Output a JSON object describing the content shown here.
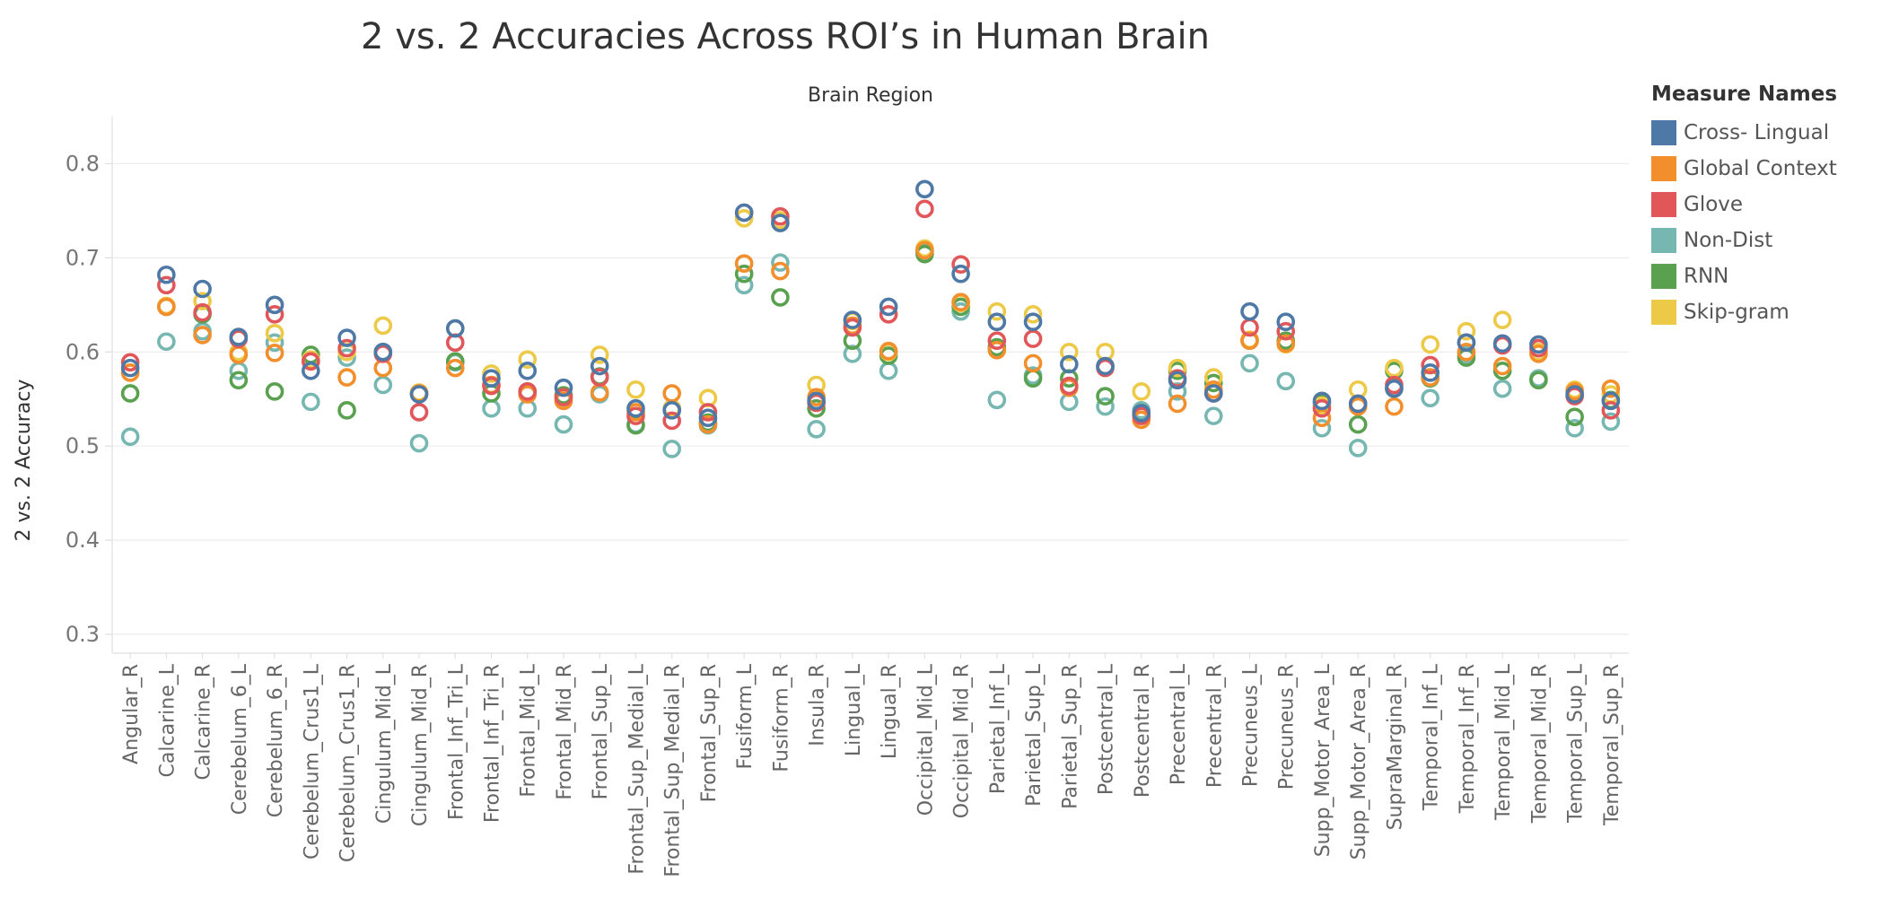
{
  "chart_data": {
    "type": "scatter",
    "title": "2 vs. 2 Accuracies Across ROI’s in Human Brain",
    "column_header": "Brain Region",
    "ylabel": "2 vs. 2 Accuracy",
    "ylim": [
      0.28,
      0.85
    ],
    "yticks": [
      "0.3",
      "0.4",
      "0.5",
      "0.6",
      "0.7",
      "0.8"
    ],
    "grid": true,
    "legend_title": "Measure Names",
    "legend_position": "right",
    "categories": [
      "Angular_R",
      "Calcarine_L",
      "Calcarine_R",
      "Cerebelum_6_L",
      "Cerebelum_6_R",
      "Cerebelum_Crus1_L",
      "Cerebelum_Crus1_R",
      "Cingulum_Mid_L",
      "Cingulum_Mid_R",
      "Frontal_Inf_Tri_L",
      "Frontal_Inf_Tri_R",
      "Frontal_Mid_L",
      "Frontal_Mid_R",
      "Frontal_Sup_L",
      "Frontal_Sup_Medial_L",
      "Frontal_Sup_Medial_R",
      "Frontal_Sup_R",
      "Fusiform_L",
      "Fusiform_R",
      "Insula_R",
      "Lingual_L",
      "Lingual_R",
      "Occipital_Mid_L",
      "Occipital_Mid_R",
      "Parietal_Inf_L",
      "Parietal_Sup_L",
      "Parietal_Sup_R",
      "Postcentral_L",
      "Postcentral_R",
      "Precentral_L",
      "Precentral_R",
      "Precuneus_L",
      "Precuneus_R",
      "Supp_Motor_Area_L",
      "Supp_Motor_Area_R",
      "SupraMarginal_R",
      "Temporal_Inf_L",
      "Temporal_Inf_R",
      "Temporal_Mid_L",
      "Temporal_Mid_R",
      "Temporal_Sup_L",
      "Temporal_Sup_R"
    ],
    "series": [
      {
        "name": "Cross- Lingual",
        "color": "#4e79a7",
        "values": [
          0.583,
          0.682,
          0.667,
          0.616,
          0.65,
          0.58,
          0.615,
          0.6,
          0.555,
          0.625,
          0.572,
          0.58,
          0.562,
          0.585,
          0.54,
          0.538,
          0.53,
          0.748,
          0.737,
          0.548,
          0.634,
          0.648,
          0.773,
          0.683,
          0.632,
          0.632,
          0.587,
          0.585,
          0.535,
          0.57,
          0.556,
          0.643,
          0.632,
          0.548,
          0.545,
          0.561,
          0.578,
          0.61,
          0.609,
          0.608,
          0.555,
          0.548
        ]
      },
      {
        "name": "Global  Context",
        "color": "#f28e2b",
        "values": [
          0.578,
          0.648,
          0.618,
          0.597,
          0.599,
          0.59,
          0.573,
          0.583,
          0.556,
          0.583,
          0.565,
          0.555,
          0.548,
          0.557,
          0.536,
          0.556,
          0.523,
          0.694,
          0.686,
          0.552,
          0.628,
          0.601,
          0.708,
          0.653,
          0.602,
          0.588,
          0.562,
          0.585,
          0.528,
          0.545,
          0.56,
          0.612,
          0.609,
          0.53,
          0.542,
          0.542,
          0.573,
          0.6,
          0.585,
          0.598,
          0.558,
          0.561
        ]
      },
      {
        "name": "Glove",
        "color": "#e15759",
        "values": [
          0.589,
          0.671,
          0.642,
          0.614,
          0.64,
          0.59,
          0.604,
          0.598,
          0.536,
          0.61,
          0.564,
          0.558,
          0.552,
          0.573,
          0.532,
          0.527,
          0.536,
          0.748,
          0.744,
          0.546,
          0.626,
          0.64,
          0.752,
          0.693,
          0.612,
          0.614,
          0.564,
          0.583,
          0.532,
          0.572,
          0.556,
          0.626,
          0.622,
          0.54,
          0.545,
          0.565,
          0.586,
          0.61,
          0.607,
          0.604,
          0.553,
          0.538
        ]
      },
      {
        "name": "Non-Dist",
        "color": "#76b7b2",
        "values": [
          0.51,
          0.611,
          0.622,
          0.58,
          0.61,
          0.547,
          0.594,
          0.565,
          0.503,
          0.589,
          0.54,
          0.54,
          0.523,
          0.555,
          0.523,
          0.497,
          0.522,
          0.671,
          0.695,
          0.518,
          0.598,
          0.58,
          0.706,
          0.643,
          0.549,
          0.575,
          0.547,
          0.542,
          0.538,
          0.558,
          0.532,
          0.588,
          0.569,
          0.519,
          0.498,
          0.562,
          0.551,
          0.597,
          0.561,
          0.572,
          0.519,
          0.526
        ]
      },
      {
        "name": "RNN",
        "color": "#59a14f",
        "values": [
          0.556,
          0.648,
          0.64,
          0.57,
          0.558,
          0.597,
          0.538,
          0.6,
          0.556,
          0.59,
          0.556,
          0.558,
          0.554,
          0.574,
          0.522,
          0.54,
          0.525,
          0.683,
          0.658,
          0.54,
          0.612,
          0.596,
          0.704,
          0.648,
          0.605,
          0.572,
          0.572,
          0.553,
          0.535,
          0.58,
          0.567,
          0.612,
          0.612,
          0.545,
          0.523,
          0.58,
          0.572,
          0.594,
          0.58,
          0.57,
          0.531,
          0.549
        ]
      },
      {
        "name": "Skip-gram",
        "color": "#edc948",
        "values": [
          0.578,
          0.649,
          0.654,
          0.6,
          0.62,
          0.592,
          0.6,
          0.628,
          0.557,
          0.625,
          0.577,
          0.592,
          0.55,
          0.597,
          0.56,
          0.54,
          0.551,
          0.742,
          0.74,
          0.565,
          0.633,
          0.6,
          0.71,
          0.652,
          0.643,
          0.64,
          0.6,
          0.6,
          0.558,
          0.583,
          0.573,
          0.613,
          0.608,
          0.543,
          0.56,
          0.583,
          0.608,
          0.622,
          0.634,
          0.6,
          0.56,
          0.555
        ]
      }
    ]
  }
}
